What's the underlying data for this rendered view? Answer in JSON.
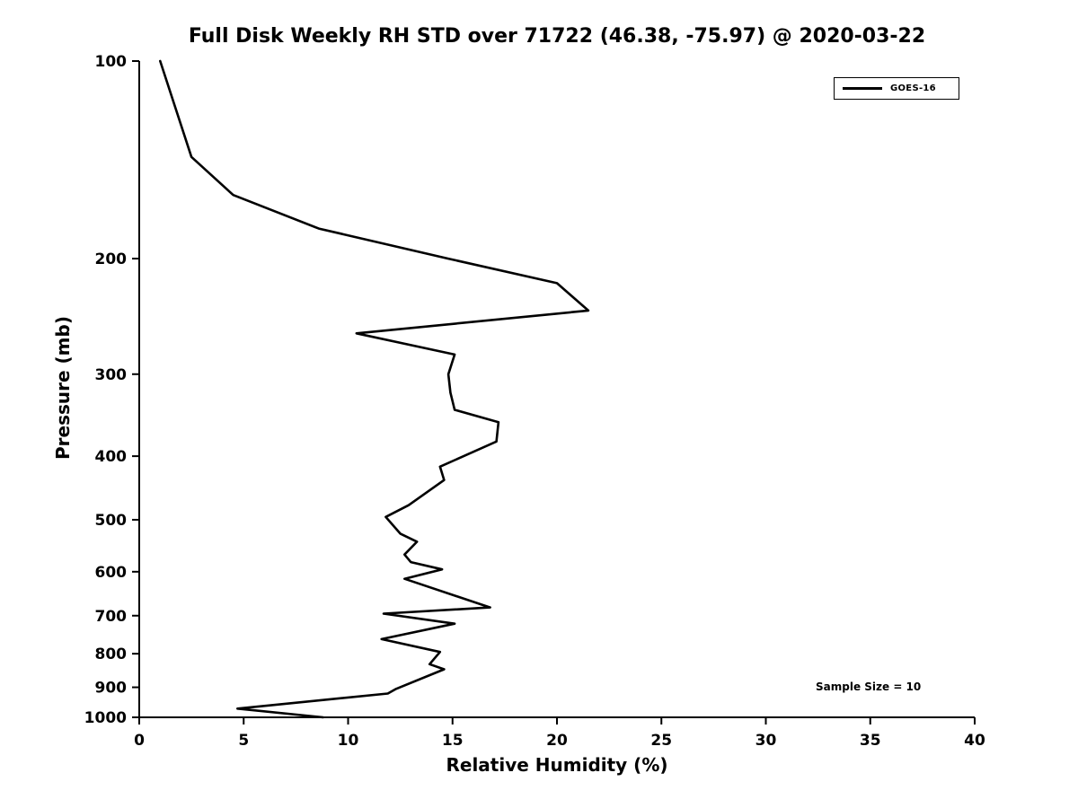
{
  "title": "Full Disk Weekly RH STD over 71722 (46.38, -75.97) @ 2020-03-22",
  "legend": {
    "series_label": "GOES-16"
  },
  "annotation": {
    "text": "Sample Size = 10"
  },
  "colors": {
    "line": "#000000",
    "background": "#ffffff",
    "text": "#000000"
  },
  "chart_data": {
    "type": "line",
    "title": "Full Disk Weekly RH STD over 71722 (46.38, -75.97) @ 2020-03-22",
    "xlabel": "Relative Humidity (%)",
    "ylabel": "Pressure (mb)",
    "xlim": [
      0,
      40
    ],
    "ylim": [
      1000,
      100
    ],
    "yscale": "log",
    "grid": false,
    "legend_position": "upper right",
    "x_ticks": [
      0,
      5,
      10,
      15,
      20,
      25,
      30,
      35,
      40
    ],
    "y_ticks": [
      100,
      200,
      300,
      400,
      500,
      600,
      700,
      800,
      900,
      1000
    ],
    "annotations": [
      {
        "text": "Sample Size = 10"
      }
    ],
    "series": [
      {
        "name": "GOES-16",
        "color": "#000000",
        "y_pressure_mb": [
          100,
          140,
          160,
          180,
          200,
          218,
          240,
          260,
          280,
          300,
          320,
          340,
          355,
          380,
          415,
          435,
          475,
          495,
          525,
          540,
          565,
          580,
          595,
          615,
          680,
          695,
          720,
          760,
          795,
          830,
          845,
          905,
          920,
          970,
          1000
        ],
        "x_rh_percent": [
          1.0,
          2.5,
          4.5,
          8.6,
          14.8,
          20.0,
          21.5,
          10.4,
          15.1,
          14.8,
          14.9,
          15.1,
          17.2,
          17.1,
          14.4,
          14.6,
          12.9,
          11.8,
          12.5,
          13.3,
          12.7,
          13.0,
          14.5,
          12.7,
          16.8,
          11.7,
          15.1,
          11.6,
          14.4,
          13.9,
          14.6,
          12.3,
          11.9,
          4.7,
          8.8
        ]
      }
    ]
  }
}
